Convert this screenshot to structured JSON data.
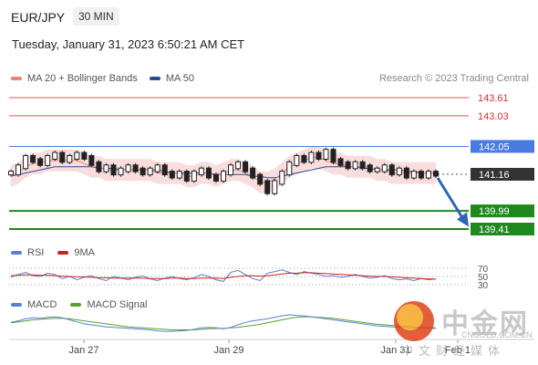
{
  "header": {
    "symbol": "EUR/JPY",
    "timeframe": "30 MIN",
    "timestamp": "Tuesday, January 31, 2023 6:50:21 AM CET"
  },
  "legend_main": [
    {
      "label": "MA 20 + Bollinger Bands",
      "color": "#f08080"
    },
    {
      "label": "MA 50",
      "color": "#2a4a8a"
    }
  ],
  "credit": "Research © 2023 Trading Central",
  "legend_rsi": [
    {
      "label": "RSI",
      "color": "#5a7fd6"
    },
    {
      "label": "9MA",
      "color": "#d21f1f"
    }
  ],
  "legend_macd": [
    {
      "label": "MACD",
      "color": "#5a7fd6"
    },
    {
      "label": "MACD Signal",
      "color": "#5aa02c"
    }
  ],
  "watermark": {
    "name": "中金网",
    "url": "CNGOLD.COM.CN",
    "tagline": "中文财经媒体"
  },
  "chart_data": {
    "type": "line",
    "price_levels": [
      {
        "value": 143.61,
        "label": "143.61",
        "kind": "resistance",
        "color": "#e05555"
      },
      {
        "value": 143.03,
        "label": "143.03",
        "kind": "resistance",
        "color": "#e05555"
      },
      {
        "value": 142.05,
        "label": "142.05",
        "kind": "pivot",
        "color": "#4a7be0"
      },
      {
        "value": 141.16,
        "label": "141.16",
        "kind": "last",
        "color": "#333333"
      },
      {
        "value": 139.99,
        "label": "139.99",
        "kind": "support",
        "color": "#1e8a1e"
      },
      {
        "value": 139.41,
        "label": "139.41",
        "kind": "support",
        "color": "#1e8a1e"
      }
    ],
    "x_ticks": [
      "Jan 27",
      "Jan 29",
      "Jan 31",
      "Feb 1"
    ],
    "price": [
      141.2,
      141.4,
      141.7,
      141.6,
      141.5,
      141.7,
      141.8,
      141.6,
      141.7,
      141.8,
      141.7,
      141.5,
      141.3,
      141.4,
      141.2,
      141.3,
      141.4,
      141.3,
      141.2,
      141.3,
      141.4,
      141.2,
      141.1,
      141.2,
      141.0,
      141.2,
      141.3,
      141.1,
      141.0,
      141.2,
      141.4,
      141.5,
      141.3,
      141.1,
      140.9,
      140.6,
      140.9,
      141.2,
      141.5,
      141.7,
      141.6,
      141.8,
      141.7,
      141.9,
      141.6,
      141.5,
      141.4,
      141.5,
      141.4,
      141.3,
      141.3,
      141.4,
      141.2,
      141.3,
      141.1,
      141.2,
      141.1,
      141.2,
      141.16
    ],
    "ma20": [
      141.1,
      141.2,
      141.4,
      141.5,
      141.5,
      141.6,
      141.6,
      141.6,
      141.6,
      141.6,
      141.5,
      141.4,
      141.4,
      141.3,
      141.3,
      141.3,
      141.3,
      141.3,
      141.3,
      141.3,
      141.2,
      141.2,
      141.2,
      141.2,
      141.1,
      141.1,
      141.2,
      141.2,
      141.1,
      141.2,
      141.3,
      141.3,
      141.2,
      141.1,
      140.9,
      140.9,
      141.0,
      141.2,
      141.4,
      141.5,
      141.6,
      141.7,
      141.7,
      141.6,
      141.5,
      141.5,
      141.4,
      141.4,
      141.4,
      141.4,
      141.3,
      141.3,
      141.2,
      141.2,
      141.2,
      141.2,
      141.2,
      141.2,
      141.2
    ],
    "ma50": [
      141.1,
      141.15,
      141.2,
      141.25,
      141.3,
      141.35,
      141.4,
      141.4,
      141.4,
      141.4,
      141.4,
      141.4,
      141.35,
      141.35,
      141.35,
      141.3,
      141.3,
      141.3,
      141.3,
      141.3,
      141.3,
      141.25,
      141.2,
      141.2,
      141.2,
      141.2,
      141.2,
      141.2,
      141.15,
      141.15,
      141.15,
      141.15,
      141.15,
      141.1,
      141.1,
      141.05,
      141.05,
      141.1,
      141.15,
      141.2,
      141.25,
      141.3,
      141.35,
      141.4,
      141.4,
      141.4,
      141.4,
      141.4,
      141.35,
      141.35,
      141.3,
      141.3,
      141.3,
      141.3,
      141.25,
      141.25,
      141.2,
      141.2,
      141.2
    ],
    "bb_width": 0.35,
    "forecast": {
      "from": 141.16,
      "to": 139.6
    },
    "rsi": {
      "ticks": [
        "70",
        "50",
        "30"
      ],
      "rsi": [
        48,
        55,
        60,
        52,
        50,
        58,
        55,
        45,
        50,
        42,
        48,
        52,
        45,
        40,
        50,
        46,
        42,
        48,
        52,
        44,
        40,
        46,
        50,
        45,
        42,
        47,
        55,
        50,
        42,
        38,
        60,
        65,
        55,
        45,
        40,
        58,
        62,
        66,
        60,
        55,
        62,
        58,
        55,
        50,
        52,
        48,
        50,
        55,
        50,
        46,
        48,
        52,
        45,
        42,
        44,
        40,
        45,
        42,
        44
      ],
      "ma9": [
        52,
        53,
        54,
        54,
        53,
        53,
        52,
        51,
        50,
        49,
        49,
        48,
        47,
        47,
        46,
        46,
        46,
        46,
        46,
        45,
        45,
        45,
        46,
        46,
        45,
        45,
        46,
        46,
        46,
        45,
        48,
        50,
        52,
        52,
        51,
        52,
        54,
        56,
        58,
        58,
        59,
        59,
        58,
        57,
        56,
        55,
        54,
        53,
        52,
        51,
        50,
        50,
        49,
        48,
        47,
        46,
        45,
        44,
        44
      ]
    },
    "macd": {
      "macd": [
        0.05,
        0.08,
        0.12,
        0.14,
        0.13,
        0.15,
        0.16,
        0.14,
        0.1,
        0.06,
        0.02,
        0.0,
        -0.02,
        -0.04,
        -0.05,
        -0.06,
        -0.07,
        -0.08,
        -0.09,
        -0.1,
        -0.12,
        -0.13,
        -0.13,
        -0.12,
        -0.11,
        -0.09,
        -0.06,
        -0.05,
        -0.06,
        -0.08,
        -0.05,
        0.0,
        0.05,
        0.08,
        0.1,
        0.12,
        0.15,
        0.18,
        0.2,
        0.19,
        0.18,
        0.16,
        0.14,
        0.12,
        0.1,
        0.08,
        0.06,
        0.04,
        0.02,
        0.0,
        -0.02,
        -0.03,
        -0.04,
        -0.05,
        -0.05,
        -0.06,
        -0.06,
        -0.07,
        -0.07
      ],
      "signal": [
        0.04,
        0.06,
        0.08,
        0.1,
        0.11,
        0.12,
        0.13,
        0.13,
        0.12,
        0.1,
        0.08,
        0.06,
        0.04,
        0.02,
        0.0,
        -0.02,
        -0.04,
        -0.05,
        -0.06,
        -0.07,
        -0.08,
        -0.09,
        -0.1,
        -0.1,
        -0.1,
        -0.1,
        -0.09,
        -0.08,
        -0.07,
        -0.07,
        -0.06,
        -0.05,
        -0.03,
        -0.01,
        0.01,
        0.04,
        0.07,
        0.1,
        0.13,
        0.15,
        0.16,
        0.16,
        0.15,
        0.14,
        0.13,
        0.11,
        0.09,
        0.07,
        0.05,
        0.03,
        0.01,
        0.0,
        -0.01,
        -0.02,
        -0.03,
        -0.04,
        -0.05,
        -0.05,
        -0.06
      ]
    }
  }
}
